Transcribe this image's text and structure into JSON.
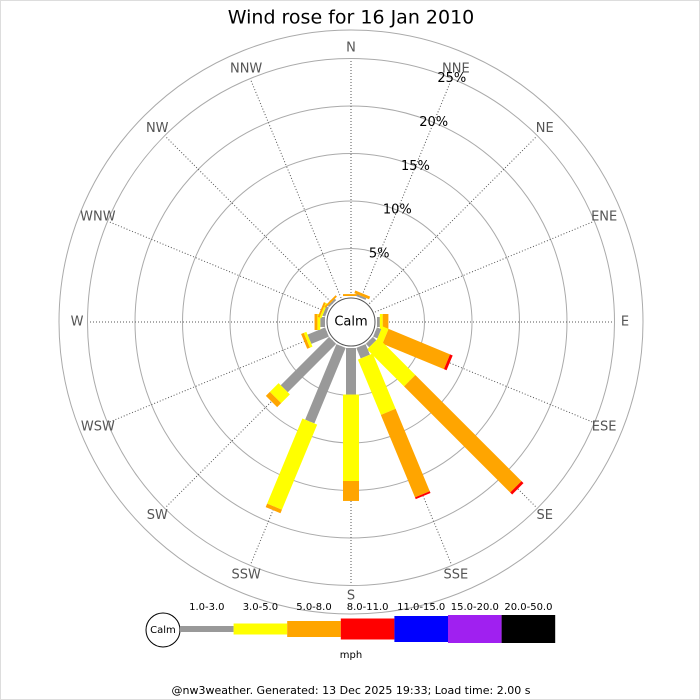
{
  "chart_data": {
    "type": "windrose",
    "title": "Wind rose for 16 Jan 2010",
    "categories": [
      "N",
      "NNE",
      "NE",
      "ENE",
      "E",
      "ESE",
      "SE",
      "SSE",
      "S",
      "SSW",
      "SW",
      "WSW",
      "W",
      "WNW",
      "NW",
      "NNW"
    ],
    "calm_label": "Calm",
    "unit": "mph",
    "series": [
      {
        "name": "1.0-3.0",
        "color": "#999999",
        "values": [
          0,
          0.2,
          0,
          0,
          0.3,
          0.5,
          0.5,
          1.2,
          4.9,
          8.6,
          7.2,
          2.0,
          0.5,
          0.3,
          0.2,
          0
        ]
      },
      {
        "name": "3.0-5.0",
        "color": "#ffff00",
        "values": [
          0,
          0,
          0,
          0,
          0.3,
          0.7,
          5.5,
          6.3,
          9.1,
          9.7,
          1.3,
          0.3,
          0.3,
          0.2,
          0,
          0
        ]
      },
      {
        "name": "5.0-8.0",
        "color": "#ffa500",
        "values": [
          0.2,
          0.3,
          0,
          0,
          0.6,
          7.0,
          15.8,
          9.4,
          2.1,
          0.4,
          0.6,
          0.3,
          0.3,
          0.2,
          0.2,
          0
        ]
      },
      {
        "name": "8.0-11.0",
        "color": "#ff0000",
        "values": [
          0,
          0,
          0,
          0,
          0,
          0.3,
          0.3,
          0.2,
          0,
          0,
          0,
          0,
          0,
          0,
          0,
          0
        ]
      },
      {
        "name": "11.0-15.0",
        "color": "#0000ff",
        "values": [
          0,
          0,
          0,
          0,
          0,
          0,
          0,
          0,
          0,
          0,
          0,
          0,
          0,
          0,
          0,
          0
        ]
      },
      {
        "name": "15.0-20.0",
        "color": "#a020f0",
        "values": [
          0,
          0,
          0,
          0,
          0,
          0,
          0,
          0,
          0,
          0,
          0,
          0,
          0,
          0,
          0,
          0
        ]
      },
      {
        "name": "20.0-50.0",
        "color": "#000000",
        "values": [
          0,
          0,
          0,
          0,
          0,
          0,
          0,
          0,
          0,
          0,
          0,
          0,
          0,
          0,
          0,
          0
        ]
      }
    ],
    "rlim": [
      0,
      28
    ],
    "rticks": [
      {
        "value": 5,
        "label": "5%"
      },
      {
        "value": 10,
        "label": "10%"
      },
      {
        "value": 15,
        "label": "15%"
      },
      {
        "value": 20,
        "label": "20%"
      },
      {
        "value": 25,
        "label": "25%"
      }
    ],
    "footer": "@nw3weather.  Generated: 13 Dec 2025 19:33; Load time: 2.00 s"
  }
}
